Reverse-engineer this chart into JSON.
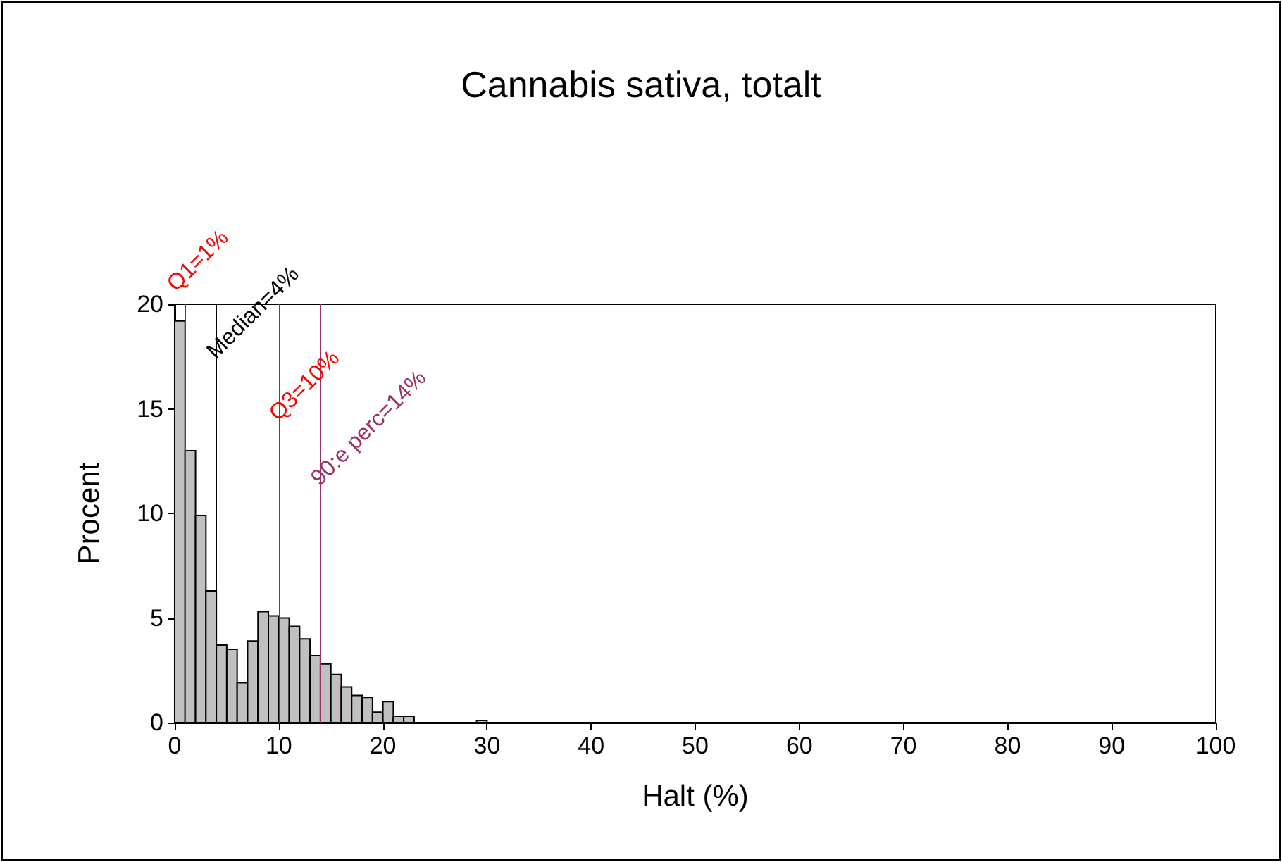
{
  "chart_data": {
    "type": "histogram",
    "title": "Cannabis sativa, totalt",
    "xlabel": "Halt (%)",
    "ylabel": "Procent",
    "bins": [
      0,
      1,
      2,
      3,
      4,
      5,
      6,
      7,
      8,
      9,
      10,
      11,
      12,
      13,
      14,
      15,
      16,
      17,
      18,
      19,
      20,
      21,
      22,
      23,
      24,
      25,
      26,
      27,
      28,
      29,
      30
    ],
    "values": [
      19.2,
      13.0,
      9.9,
      6.3,
      3.7,
      3.5,
      1.9,
      3.9,
      5.3,
      5.1,
      5.0,
      4.6,
      4.0,
      3.2,
      2.8,
      2.3,
      1.7,
      1.3,
      1.2,
      0.5,
      1.0,
      0.3,
      0.3,
      0,
      0,
      0,
      0,
      0,
      0,
      0.1
    ],
    "color": "#c0c0c0",
    "xlim": [
      0,
      100
    ],
    "xticks": [
      0,
      10,
      20,
      30,
      40,
      50,
      60,
      70,
      80,
      90,
      100
    ],
    "ylim": [
      0,
      20
    ],
    "yticks": [
      0,
      5,
      10,
      15,
      20
    ],
    "grid": false,
    "ref_lines": [
      {
        "axis": "x",
        "value": 1,
        "label": "Q1=1%",
        "color": "#ff0000"
      },
      {
        "axis": "x",
        "value": 4,
        "label": "Median=4%",
        "color": "#000000"
      },
      {
        "axis": "x",
        "value": 10,
        "label": "Q3=10%",
        "color": "#ff0000"
      },
      {
        "axis": "x",
        "value": 14,
        "label": "90:e perc=14%",
        "color": "#993366"
      }
    ]
  }
}
